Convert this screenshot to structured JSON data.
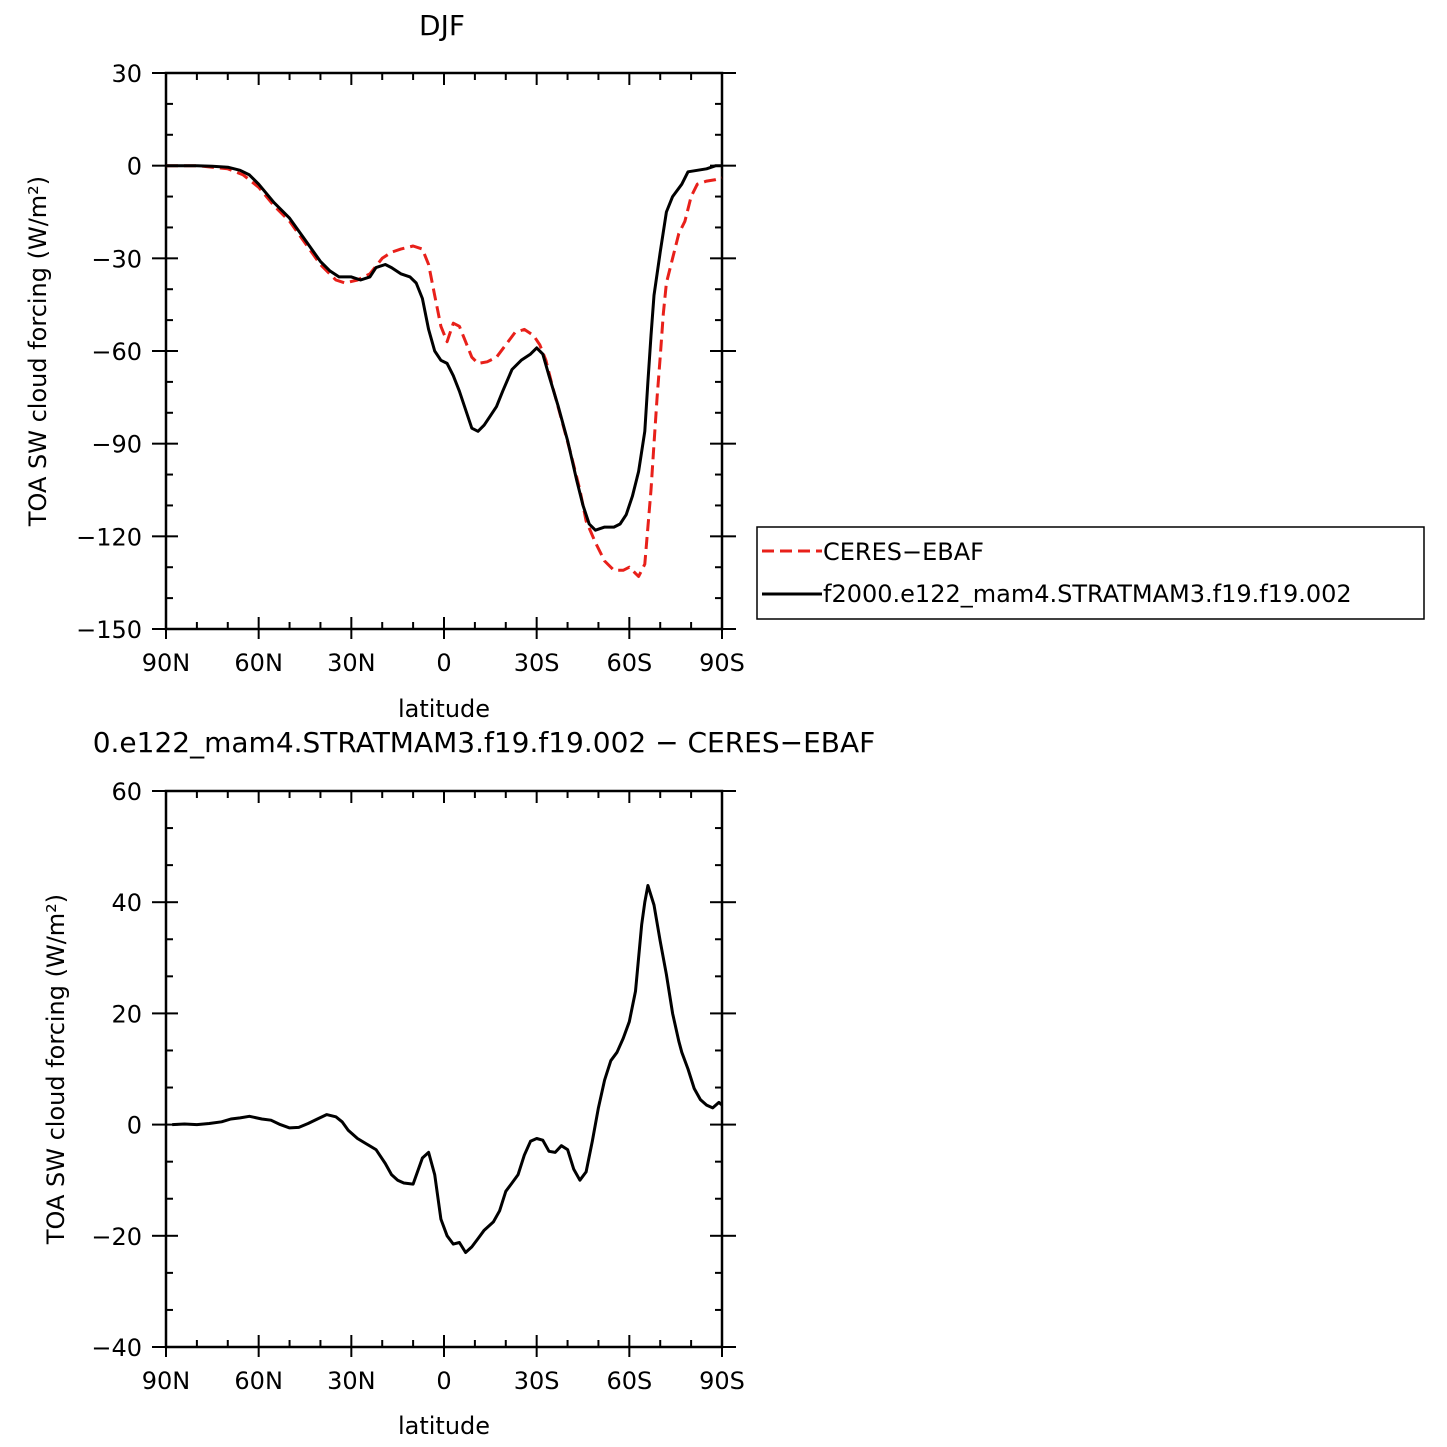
{
  "chart_data": [
    {
      "type": "line",
      "title": "DJF",
      "xlabel": "latitude",
      "ylabel": "TOA SW cloud forcing (W/m²)",
      "xlim": [
        90,
        -90
      ],
      "ylim": [
        -150,
        30
      ],
      "x_ticks": [
        90,
        60,
        30,
        0,
        -30,
        -60,
        -90
      ],
      "x_tick_labels": [
        "90N",
        "60N",
        "30N",
        "0",
        "30S",
        "60S",
        "90S"
      ],
      "y_ticks": [
        30,
        0,
        -30,
        -60,
        -90,
        -120,
        -150
      ],
      "y_tick_labels": [
        "30",
        "0",
        "−30",
        "−60",
        "−90",
        "−120",
        "−150"
      ],
      "grid": false,
      "legend_position": "right",
      "series": [
        {
          "name": "CERES−EBAF",
          "color": "#e8201a",
          "style": "dashed",
          "points": [
            [
              90,
              0
            ],
            [
              80,
              0
            ],
            [
              75,
              -0.5
            ],
            [
              70,
              -1
            ],
            [
              65,
              -3
            ],
            [
              60,
              -7
            ],
            [
              55,
              -13
            ],
            [
              50,
              -18
            ],
            [
              45,
              -25
            ],
            [
              40,
              -32
            ],
            [
              35,
              -37
            ],
            [
              32,
              -38
            ],
            [
              28,
              -37
            ],
            [
              24,
              -35
            ],
            [
              20,
              -30
            ],
            [
              17,
              -28
            ],
            [
              14,
              -27
            ],
            [
              10,
              -26
            ],
            [
              7,
              -27
            ],
            [
              5,
              -32
            ],
            [
              3,
              -42
            ],
            [
              1,
              -52
            ],
            [
              -1,
              -57
            ],
            [
              -3,
              -51
            ],
            [
              -5,
              -52
            ],
            [
              -7,
              -57
            ],
            [
              -9,
              -62
            ],
            [
              -11,
              -64
            ],
            [
              -14,
              -63.5
            ],
            [
              -17,
              -62
            ],
            [
              -20,
              -58
            ],
            [
              -23,
              -54
            ],
            [
              -26,
              -53
            ],
            [
              -29,
              -55
            ],
            [
              -31,
              -58
            ],
            [
              -33,
              -63
            ],
            [
              -35,
              -71
            ],
            [
              -38,
              -82
            ],
            [
              -41,
              -93
            ],
            [
              -44,
              -105
            ],
            [
              -46,
              -115
            ],
            [
              -49,
              -122
            ],
            [
              -52,
              -128
            ],
            [
              -55,
              -131
            ],
            [
              -58,
              -131
            ],
            [
              -60,
              -130
            ],
            [
              -63,
              -133
            ],
            [
              -65,
              -129
            ],
            [
              -67,
              -105
            ],
            [
              -68,
              -90
            ],
            [
              -69,
              -75
            ],
            [
              -70,
              -62
            ],
            [
              -71,
              -48
            ],
            [
              -72,
              -38
            ],
            [
              -74,
              -30
            ],
            [
              -76,
              -22
            ],
            [
              -78,
              -18
            ],
            [
              -80,
              -10
            ],
            [
              -82,
              -6
            ],
            [
              -85,
              -5
            ],
            [
              -88,
              -4.5
            ],
            [
              -90,
              -4
            ]
          ]
        },
        {
          "name": "f2000.e122_mam4.STRATMAM3.f19.f19.002",
          "color": "#000000",
          "style": "solid",
          "points": [
            [
              90,
              0
            ],
            [
              80,
              0
            ],
            [
              75,
              -0.2
            ],
            [
              70,
              -0.5
            ],
            [
              66,
              -1.5
            ],
            [
              63,
              -3
            ],
            [
              60,
              -6
            ],
            [
              55,
              -12
            ],
            [
              50,
              -17
            ],
            [
              45,
              -24
            ],
            [
              40,
              -31
            ],
            [
              37,
              -34
            ],
            [
              34,
              -36
            ],
            [
              30,
              -36
            ],
            [
              27,
              -37
            ],
            [
              24,
              -36
            ],
            [
              22,
              -33
            ],
            [
              19,
              -32
            ],
            [
              17,
              -33
            ],
            [
              14,
              -35
            ],
            [
              11,
              -36
            ],
            [
              9,
              -38
            ],
            [
              7,
              -43
            ],
            [
              5,
              -53
            ],
            [
              3,
              -60
            ],
            [
              1,
              -63
            ],
            [
              -1,
              -64
            ],
            [
              -3,
              -68
            ],
            [
              -5,
              -73
            ],
            [
              -7,
              -79
            ],
            [
              -9,
              -85
            ],
            [
              -11,
              -86
            ],
            [
              -13,
              -84
            ],
            [
              -15,
              -81
            ],
            [
              -17,
              -78
            ],
            [
              -19,
              -73
            ],
            [
              -22,
              -66
            ],
            [
              -25,
              -63
            ],
            [
              -28,
              -61
            ],
            [
              -30,
              -59
            ],
            [
              -32,
              -61
            ],
            [
              -34,
              -68
            ],
            [
              -37,
              -78
            ],
            [
              -40,
              -89
            ],
            [
              -43,
              -102
            ],
            [
              -45,
              -110
            ],
            [
              -47,
              -116
            ],
            [
              -49,
              -118
            ],
            [
              -52,
              -117
            ],
            [
              -55,
              -117
            ],
            [
              -57,
              -116
            ],
            [
              -59,
              -113
            ],
            [
              -61,
              -107
            ],
            [
              -63,
              -99
            ],
            [
              -65,
              -86
            ],
            [
              -66,
              -70
            ],
            [
              -67,
              -55
            ],
            [
              -68,
              -42
            ],
            [
              -70,
              -28
            ],
            [
              -72,
              -15
            ],
            [
              -74,
              -10
            ],
            [
              -77,
              -6
            ],
            [
              -79,
              -2
            ],
            [
              -82,
              -1.5
            ],
            [
              -85,
              -1
            ],
            [
              -88,
              0
            ],
            [
              -90,
              0
            ]
          ]
        }
      ]
    },
    {
      "type": "line",
      "title": "0.e122_mam4.STRATMAM3.f19.f19.002 − CERES−EBAF",
      "xlabel": "latitude",
      "ylabel": "TOA SW cloud forcing (W/m²)",
      "xlim": [
        90,
        -90
      ],
      "ylim": [
        -40,
        60
      ],
      "x_ticks": [
        90,
        60,
        30,
        0,
        -30,
        -60,
        -90
      ],
      "x_tick_labels": [
        "90N",
        "60N",
        "30N",
        "0",
        "30S",
        "60S",
        "90S"
      ],
      "y_ticks": [
        60,
        40,
        20,
        0,
        -20,
        -40
      ],
      "y_tick_labels": [
        "60",
        "40",
        "20",
        "0",
        "−20",
        "−40"
      ],
      "grid": false,
      "series": [
        {
          "color": "#000000",
          "style": "solid",
          "points": [
            [
              88,
              0
            ],
            [
              84,
              0.1
            ],
            [
              80,
              0
            ],
            [
              76,
              0.2
            ],
            [
              72,
              0.5
            ],
            [
              69,
              1
            ],
            [
              66,
              1.2
            ],
            [
              63,
              1.5
            ],
            [
              59,
              1
            ],
            [
              56,
              0.8
            ],
            [
              53,
              0
            ],
            [
              50,
              -0.6
            ],
            [
              47,
              -0.5
            ],
            [
              44,
              0.2
            ],
            [
              41,
              1
            ],
            [
              38,
              1.8
            ],
            [
              35,
              1.4
            ],
            [
              33,
              0.5
            ],
            [
              31,
              -1
            ],
            [
              28,
              -2.5
            ],
            [
              25,
              -3.5
            ],
            [
              22,
              -4.5
            ],
            [
              19,
              -7
            ],
            [
              17,
              -9
            ],
            [
              15,
              -10
            ],
            [
              13,
              -10.5
            ],
            [
              10,
              -10.7
            ],
            [
              7,
              -6
            ],
            [
              5,
              -5
            ],
            [
              3,
              -9
            ],
            [
              1,
              -17
            ],
            [
              -1,
              -20
            ],
            [
              -3,
              -21.5
            ],
            [
              -5,
              -21.2
            ],
            [
              -7,
              -23
            ],
            [
              -9,
              -22
            ],
            [
              -11,
              -20.5
            ],
            [
              -13,
              -19
            ],
            [
              -16,
              -17.5
            ],
            [
              -18,
              -15.5
            ],
            [
              -20,
              -12
            ],
            [
              -22,
              -10.5
            ],
            [
              -24,
              -9
            ],
            [
              -26,
              -5.5
            ],
            [
              -28,
              -3
            ],
            [
              -30,
              -2.5
            ],
            [
              -32,
              -2.8
            ],
            [
              -34,
              -4.8
            ],
            [
              -36,
              -5
            ],
            [
              -38,
              -3.8
            ],
            [
              -40,
              -4.5
            ],
            [
              -42,
              -8
            ],
            [
              -44,
              -10
            ],
            [
              -46,
              -8.5
            ],
            [
              -48,
              -3
            ],
            [
              -50,
              3
            ],
            [
              -52,
              8
            ],
            [
              -54,
              11.5
            ],
            [
              -56,
              13
            ],
            [
              -58,
              15.5
            ],
            [
              -60,
              18.5
            ],
            [
              -62,
              24
            ],
            [
              -63,
              30
            ],
            [
              -64,
              36
            ],
            [
              -65,
              40
            ],
            [
              -66,
              43
            ],
            [
              -68,
              39.5
            ],
            [
              -70,
              33
            ],
            [
              -72,
              27
            ],
            [
              -74,
              20
            ],
            [
              -76,
              15
            ],
            [
              -77,
              13
            ],
            [
              -79,
              10
            ],
            [
              -81,
              6.5
            ],
            [
              -83,
              4.5
            ],
            [
              -85,
              3.5
            ],
            [
              -87,
              3
            ],
            [
              -89,
              4
            ],
            [
              -90,
              3.5
            ]
          ]
        }
      ]
    }
  ]
}
